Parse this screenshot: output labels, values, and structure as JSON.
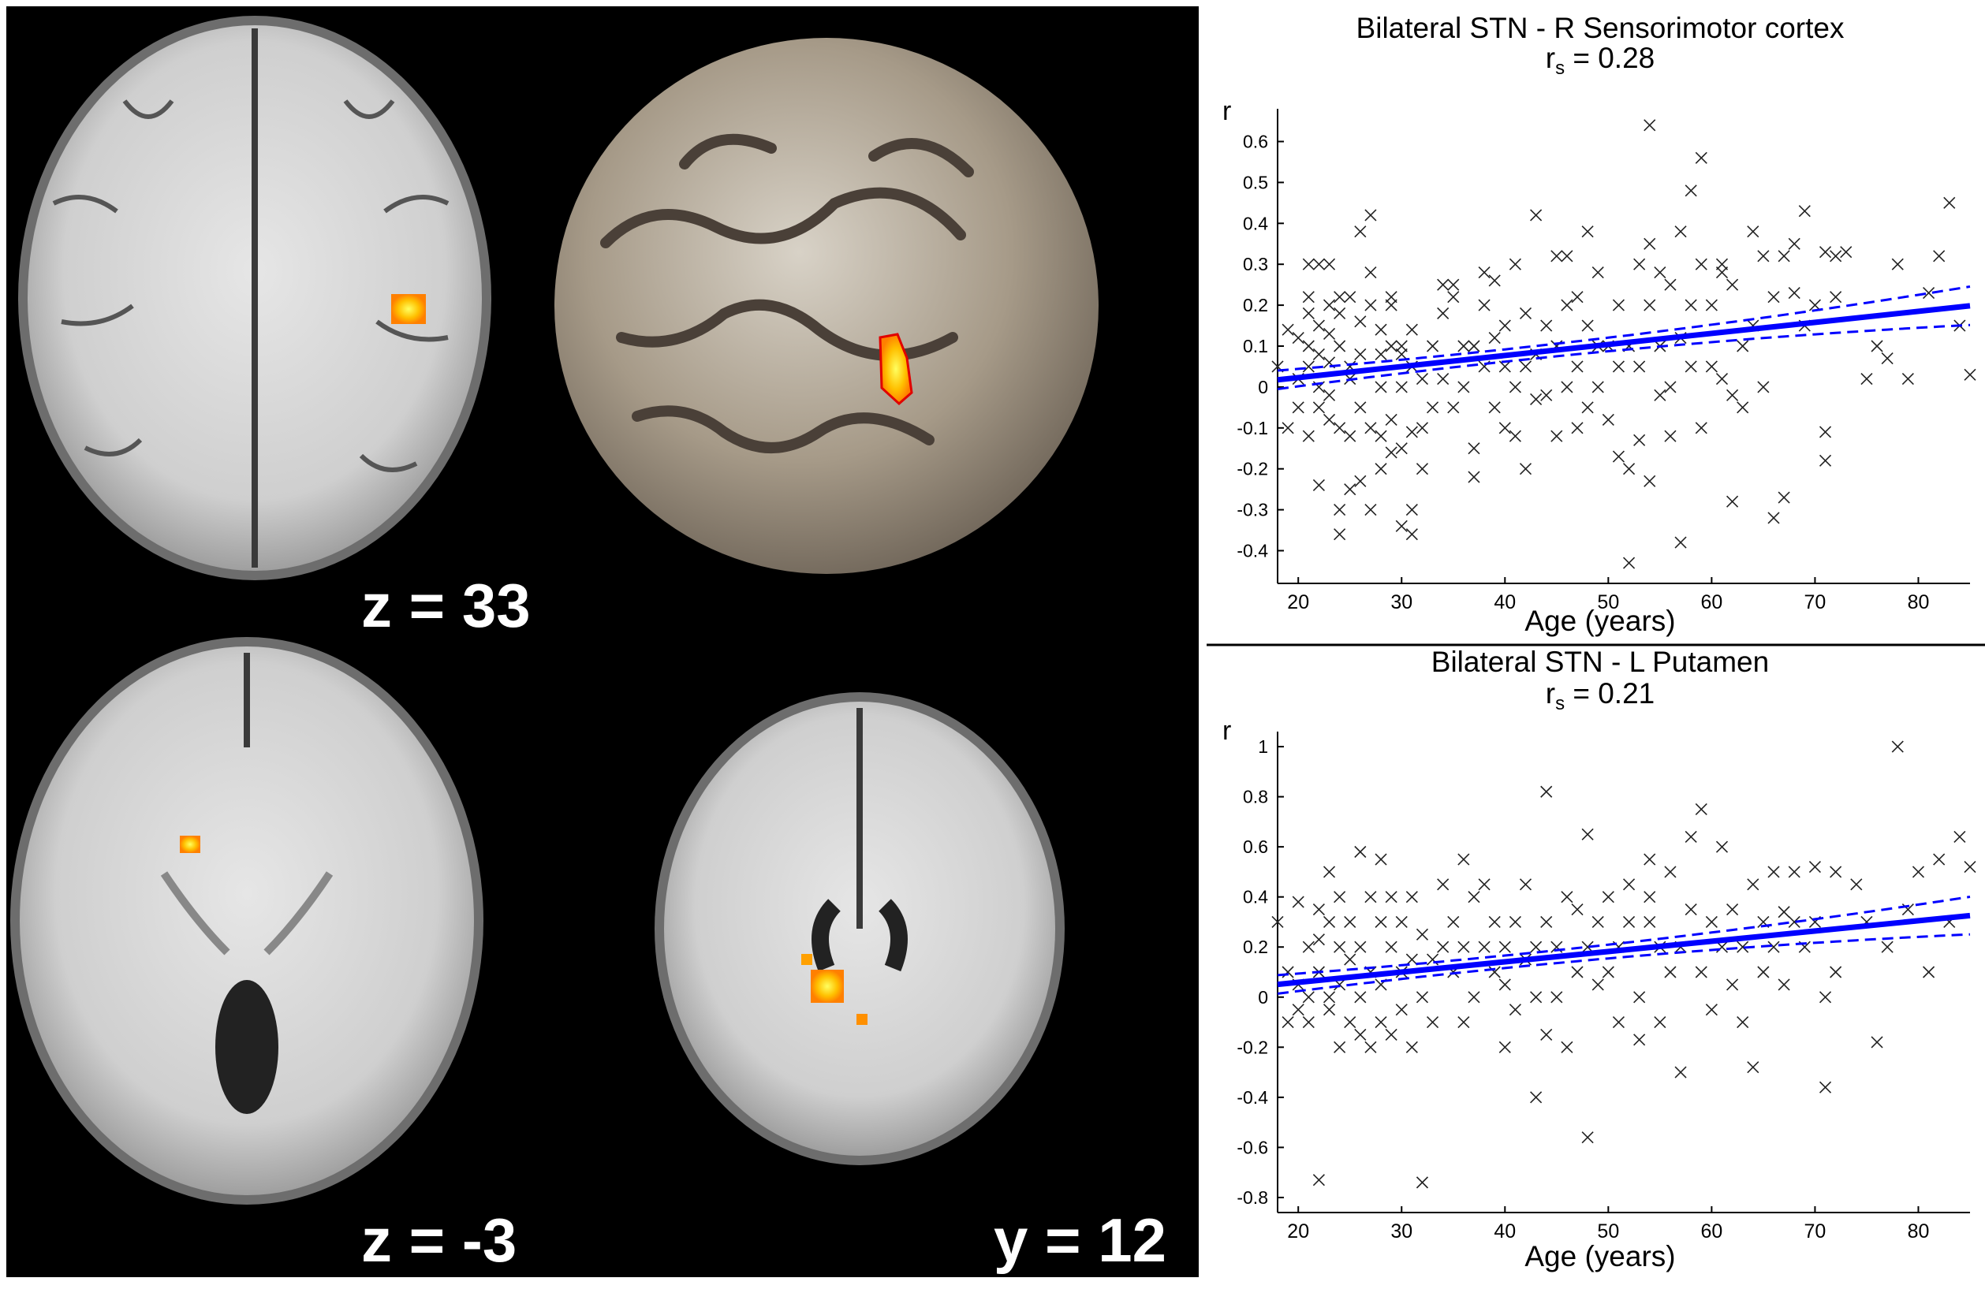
{
  "slice_labels": [
    "z = 33",
    "z = -3",
    "y = 12"
  ],
  "chart_data": [
    {
      "type": "scatter",
      "title": "Bilateral STN - R Sensorimotor cortex",
      "subtitle_main": "r",
      "subtitle_sub": "s",
      "subtitle_rest": " = 0.28",
      "ylabel": "r",
      "xlabel": "Age (years)",
      "xlim": [
        18,
        85
      ],
      "ylim": [
        -0.48,
        0.68
      ],
      "xticks": [
        20,
        30,
        40,
        50,
        60,
        70,
        80
      ],
      "yticks": [
        -0.4,
        -0.3,
        -0.2,
        -0.1,
        0,
        0.1,
        0.2,
        0.3,
        0.4,
        0.5,
        0.6
      ],
      "fit": {
        "intercept": -0.031,
        "slope": 0.0027,
        "ci_halfwidth_mid": 0.015,
        "ci_halfwidth_edge": 0.047,
        "x_center": 40
      },
      "points": [
        [
          18,
          0.05
        ],
        [
          19,
          -0.1
        ],
        [
          19,
          0.14
        ],
        [
          20,
          -0.05
        ],
        [
          20,
          0.12
        ],
        [
          20,
          0.02
        ],
        [
          21,
          0.3
        ],
        [
          21,
          0.22
        ],
        [
          21,
          0.18
        ],
        [
          21,
          -0.12
        ],
        [
          21,
          0.05
        ],
        [
          21,
          0.1
        ],
        [
          22,
          0.3
        ],
        [
          22,
          -0.24
        ],
        [
          22,
          0.15
        ],
        [
          22,
          0.08
        ],
        [
          22,
          0.0
        ],
        [
          22,
          -0.05
        ],
        [
          23,
          0.3
        ],
        [
          23,
          0.2
        ],
        [
          23,
          0.13
        ],
        [
          23,
          -0.08
        ],
        [
          23,
          0.06
        ],
        [
          23,
          -0.02
        ],
        [
          24,
          0.22
        ],
        [
          24,
          0.1
        ],
        [
          24,
          -0.1
        ],
        [
          24,
          -0.36
        ],
        [
          24,
          -0.3
        ],
        [
          24,
          0.18
        ],
        [
          25,
          0.22
        ],
        [
          25,
          0.05
        ],
        [
          25,
          -0.25
        ],
        [
          25,
          -0.12
        ],
        [
          25,
          0.02
        ],
        [
          26,
          0.38
        ],
        [
          26,
          0.16
        ],
        [
          26,
          -0.23
        ],
        [
          26,
          0.08
        ],
        [
          26,
          -0.05
        ],
        [
          27,
          0.42
        ],
        [
          27,
          0.2
        ],
        [
          27,
          0.28
        ],
        [
          27,
          -0.1
        ],
        [
          27,
          -0.3
        ],
        [
          28,
          0.08
        ],
        [
          28,
          -0.12
        ],
        [
          28,
          0.14
        ],
        [
          28,
          0.0
        ],
        [
          28,
          -0.2
        ],
        [
          29,
          0.2
        ],
        [
          29,
          0.1
        ],
        [
          29,
          -0.16
        ],
        [
          29,
          -0.08
        ],
        [
          29,
          0.22
        ],
        [
          30,
          0.1
        ],
        [
          30,
          0.0
        ],
        [
          30,
          -0.15
        ],
        [
          30,
          -0.34
        ],
        [
          30,
          0.08
        ],
        [
          31,
          0.14
        ],
        [
          31,
          -0.11
        ],
        [
          31,
          -0.36
        ],
        [
          31,
          -0.3
        ],
        [
          31,
          0.05
        ],
        [
          32,
          0.02
        ],
        [
          32,
          -0.2
        ],
        [
          32,
          -0.1
        ],
        [
          33,
          0.1
        ],
        [
          33,
          -0.05
        ],
        [
          34,
          0.25
        ],
        [
          34,
          0.18
        ],
        [
          34,
          0.02
        ],
        [
          35,
          0.22
        ],
        [
          35,
          0.25
        ],
        [
          35,
          -0.05
        ],
        [
          36,
          0.1
        ],
        [
          36,
          0.0
        ],
        [
          37,
          0.1
        ],
        [
          37,
          -0.15
        ],
        [
          37,
          -0.22
        ],
        [
          38,
          0.28
        ],
        [
          38,
          0.2
        ],
        [
          38,
          0.05
        ],
        [
          39,
          0.26
        ],
        [
          39,
          -0.05
        ],
        [
          39,
          0.12
        ],
        [
          40,
          0.15
        ],
        [
          40,
          -0.1
        ],
        [
          40,
          0.05
        ],
        [
          41,
          0.3
        ],
        [
          41,
          0.0
        ],
        [
          41,
          -0.12
        ],
        [
          42,
          0.18
        ],
        [
          42,
          0.05
        ],
        [
          42,
          -0.2
        ],
        [
          43,
          0.42
        ],
        [
          43,
          0.08
        ],
        [
          43,
          -0.03
        ],
        [
          44,
          0.15
        ],
        [
          44,
          -0.02
        ],
        [
          45,
          0.32
        ],
        [
          45,
          0.1
        ],
        [
          45,
          -0.12
        ],
        [
          46,
          0.32
        ],
        [
          46,
          0.2
        ],
        [
          46,
          0.0
        ],
        [
          47,
          0.22
        ],
        [
          47,
          0.05
        ],
        [
          47,
          -0.1
        ],
        [
          48,
          0.38
        ],
        [
          48,
          0.15
        ],
        [
          48,
          -0.05
        ],
        [
          49,
          0.28
        ],
        [
          49,
          0.1
        ],
        [
          49,
          0.0
        ],
        [
          50,
          0.1
        ],
        [
          50,
          -0.08
        ],
        [
          51,
          0.2
        ],
        [
          51,
          -0.17
        ],
        [
          51,
          0.05
        ],
        [
          52,
          -0.43
        ],
        [
          52,
          -0.2
        ],
        [
          52,
          0.1
        ],
        [
          53,
          0.3
        ],
        [
          53,
          0.05
        ],
        [
          53,
          -0.13
        ],
        [
          54,
          0.64
        ],
        [
          54,
          0.35
        ],
        [
          54,
          -0.23
        ],
        [
          54,
          0.2
        ],
        [
          55,
          0.28
        ],
        [
          55,
          0.1
        ],
        [
          55,
          -0.02
        ],
        [
          56,
          0.25
        ],
        [
          56,
          0.0
        ],
        [
          56,
          -0.12
        ],
        [
          57,
          0.38
        ],
        [
          57,
          0.12
        ],
        [
          57,
          -0.38
        ],
        [
          58,
          0.48
        ],
        [
          58,
          0.2
        ],
        [
          58,
          0.05
        ],
        [
          59,
          0.56
        ],
        [
          59,
          0.3
        ],
        [
          59,
          -0.1
        ],
        [
          60,
          0.2
        ],
        [
          60,
          0.05
        ],
        [
          61,
          0.3
        ],
        [
          61,
          0.02
        ],
        [
          61,
          0.28
        ],
        [
          62,
          0.25
        ],
        [
          62,
          -0.02
        ],
        [
          62,
          -0.28
        ],
        [
          63,
          0.1
        ],
        [
          63,
          -0.05
        ],
        [
          64,
          0.38
        ],
        [
          64,
          0.15
        ],
        [
          65,
          0.32
        ],
        [
          65,
          0.0
        ],
        [
          66,
          0.22
        ],
        [
          66,
          -0.32
        ],
        [
          67,
          0.32
        ],
        [
          67,
          -0.27
        ],
        [
          68,
          0.35
        ],
        [
          68,
          0.23
        ],
        [
          69,
          0.43
        ],
        [
          69,
          0.15
        ],
        [
          70,
          0.2
        ],
        [
          71,
          0.33
        ],
        [
          71,
          -0.18
        ],
        [
          71,
          -0.11
        ],
        [
          72,
          0.22
        ],
        [
          72,
          0.32
        ],
        [
          73,
          0.33
        ],
        [
          75,
          0.02
        ],
        [
          76,
          0.1
        ],
        [
          77,
          0.07
        ],
        [
          78,
          0.3
        ],
        [
          79,
          0.02
        ],
        [
          81,
          0.23
        ],
        [
          82,
          0.32
        ],
        [
          83,
          0.45
        ],
        [
          84,
          0.15
        ],
        [
          85,
          0.03
        ]
      ]
    },
    {
      "type": "scatter",
      "title": "Bilateral STN - L Putamen",
      "subtitle_main": "r",
      "subtitle_sub": "s",
      "subtitle_rest": " = 0.21",
      "ylabel": "r",
      "xlabel": "Age (years)",
      "xlim": [
        18,
        85
      ],
      "ylim": [
        -0.86,
        1.06
      ],
      "xticks": [
        20,
        30,
        40,
        50,
        60,
        70,
        80
      ],
      "yticks": [
        -0.8,
        -0.6,
        -0.4,
        -0.2,
        0,
        0.2,
        0.4,
        0.6,
        0.8,
        1
      ],
      "fit": {
        "intercept": -0.023,
        "slope": 0.0041,
        "ci_halfwidth_mid": 0.025,
        "ci_halfwidth_edge": 0.075,
        "x_center": 40
      },
      "points": [
        [
          18,
          0.3
        ],
        [
          19,
          -0.1
        ],
        [
          19,
          0.1
        ],
        [
          20,
          0.05
        ],
        [
          20,
          0.38
        ],
        [
          20,
          -0.05
        ],
        [
          21,
          0.2
        ],
        [
          21,
          0.0
        ],
        [
          21,
          -0.1
        ],
        [
          22,
          -0.73
        ],
        [
          22,
          0.23
        ],
        [
          22,
          0.35
        ],
        [
          22,
          0.1
        ],
        [
          23,
          0.3
        ],
        [
          23,
          0.5
        ],
        [
          23,
          0.0
        ],
        [
          23,
          -0.05
        ],
        [
          24,
          0.2
        ],
        [
          24,
          0.4
        ],
        [
          24,
          0.05
        ],
        [
          24,
          -0.2
        ],
        [
          25,
          0.15
        ],
        [
          25,
          0.3
        ],
        [
          25,
          -0.1
        ],
        [
          26,
          0.58
        ],
        [
          26,
          0.2
        ],
        [
          26,
          0.0
        ],
        [
          26,
          -0.15
        ],
        [
          27,
          0.4
        ],
        [
          27,
          0.1
        ],
        [
          27,
          -0.2
        ],
        [
          28,
          0.55
        ],
        [
          28,
          0.3
        ],
        [
          28,
          0.05
        ],
        [
          28,
          -0.1
        ],
        [
          29,
          0.2
        ],
        [
          29,
          0.4
        ],
        [
          29,
          -0.15
        ],
        [
          30,
          0.1
        ],
        [
          30,
          0.3
        ],
        [
          30,
          -0.05
        ],
        [
          31,
          0.15
        ],
        [
          31,
          -0.2
        ],
        [
          31,
          0.4
        ],
        [
          32,
          -0.74
        ],
        [
          32,
          0.0
        ],
        [
          32,
          0.25
        ],
        [
          33,
          0.15
        ],
        [
          33,
          -0.1
        ],
        [
          34,
          0.2
        ],
        [
          34,
          0.45
        ],
        [
          35,
          0.1
        ],
        [
          35,
          0.3
        ],
        [
          36,
          0.55
        ],
        [
          36,
          0.2
        ],
        [
          36,
          -0.1
        ],
        [
          37,
          0.4
        ],
        [
          37,
          0.0
        ],
        [
          38,
          0.45
        ],
        [
          38,
          0.2
        ],
        [
          39,
          0.3
        ],
        [
          39,
          0.1
        ],
        [
          40,
          0.2
        ],
        [
          40,
          -0.2
        ],
        [
          40,
          0.05
        ],
        [
          41,
          -0.05
        ],
        [
          41,
          0.3
        ],
        [
          42,
          0.15
        ],
        [
          42,
          0.45
        ],
        [
          43,
          -0.4
        ],
        [
          43,
          0.2
        ],
        [
          43,
          0.0
        ],
        [
          44,
          0.82
        ],
        [
          44,
          0.3
        ],
        [
          44,
          -0.15
        ],
        [
          45,
          0.2
        ],
        [
          45,
          0.0
        ],
        [
          46,
          0.4
        ],
        [
          46,
          -0.2
        ],
        [
          47,
          0.35
        ],
        [
          47,
          0.1
        ],
        [
          48,
          0.65
        ],
        [
          48,
          -0.56
        ],
        [
          48,
          0.2
        ],
        [
          49,
          0.3
        ],
        [
          49,
          0.05
        ],
        [
          50,
          0.4
        ],
        [
          50,
          0.1
        ],
        [
          51,
          0.2
        ],
        [
          51,
          -0.1
        ],
        [
          52,
          0.45
        ],
        [
          52,
          0.3
        ],
        [
          53,
          0.0
        ],
        [
          53,
          -0.17
        ],
        [
          54,
          0.55
        ],
        [
          54,
          0.3
        ],
        [
          54,
          0.4
        ],
        [
          55,
          0.2
        ],
        [
          55,
          -0.1
        ],
        [
          56,
          0.5
        ],
        [
          56,
          0.1
        ],
        [
          57,
          -0.3
        ],
        [
          57,
          0.2
        ],
        [
          58,
          0.64
        ],
        [
          58,
          0.35
        ],
        [
          59,
          0.75
        ],
        [
          59,
          0.1
        ],
        [
          60,
          0.3
        ],
        [
          60,
          -0.05
        ],
        [
          61,
          0.6
        ],
        [
          61,
          0.2
        ],
        [
          62,
          0.35
        ],
        [
          62,
          0.05
        ],
        [
          63,
          0.2
        ],
        [
          63,
          -0.1
        ],
        [
          64,
          0.45
        ],
        [
          64,
          -0.28
        ],
        [
          65,
          0.3
        ],
        [
          65,
          0.1
        ],
        [
          66,
          0.5
        ],
        [
          66,
          0.2
        ],
        [
          67,
          0.34
        ],
        [
          67,
          0.05
        ],
        [
          68,
          0.5
        ],
        [
          68,
          0.3
        ],
        [
          69,
          0.2
        ],
        [
          70,
          0.52
        ],
        [
          70,
          0.3
        ],
        [
          71,
          -0.36
        ],
        [
          71,
          0.0
        ],
        [
          72,
          0.5
        ],
        [
          72,
          0.1
        ],
        [
          74,
          0.45
        ],
        [
          75,
          0.3
        ],
        [
          76,
          -0.18
        ],
        [
          77,
          0.2
        ],
        [
          78,
          1.0
        ],
        [
          79,
          0.35
        ],
        [
          80,
          0.5
        ],
        [
          81,
          0.1
        ],
        [
          82,
          0.55
        ],
        [
          83,
          0.3
        ],
        [
          84,
          0.64
        ],
        [
          85,
          0.52
        ]
      ]
    }
  ]
}
